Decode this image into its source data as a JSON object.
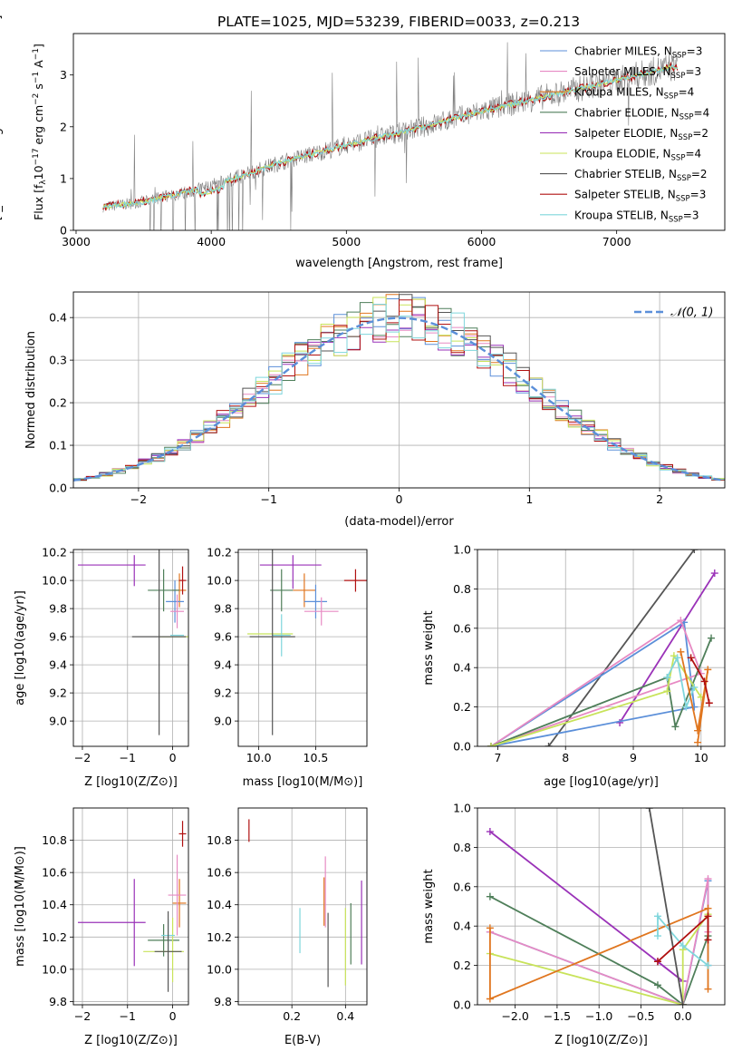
{
  "title": "PLATE=1025, MJD=53239, FIBERID=0033, z=0.213",
  "colors": {
    "chabrier_miles": "#5b8fd9",
    "salpeter_miles": "#e78ac3",
    "kroupa_miles": "#e0761f",
    "chabrier_elodie": "#4f7f5a",
    "salpeter_elodie": "#9a32b8",
    "kroupa_elodie": "#c8e35a",
    "chabrier_stelib": "#555555",
    "salpeter_stelib": "#b01010",
    "kroupa_stelib": "#7fd6dc",
    "spectrum": "#808080",
    "normal": "#5b8fd9"
  },
  "legend1": [
    {
      "label": "Chabrier MILES, N",
      "sub": "SSP",
      "suffix": "=3",
      "color": "#5b8fd9"
    },
    {
      "label": "Salpeter MILES, N",
      "sub": "SSP",
      "suffix": "=3",
      "color": "#e78ac3"
    },
    {
      "label": "Kroupa MILES, N",
      "sub": "SSP",
      "suffix": "=4",
      "color": "#e0761f"
    },
    {
      "label": "Chabrier ELODIE, N",
      "sub": "SSP",
      "suffix": "=4",
      "color": "#4f7f5a"
    },
    {
      "label": "Salpeter ELODIE, N",
      "sub": "SSP",
      "suffix": "=2",
      "color": "#9a32b8"
    },
    {
      "label": "Kroupa ELODIE, N",
      "sub": "SSP",
      "suffix": "=4",
      "color": "#c8e35a"
    },
    {
      "label": "Chabrier STELIB, N",
      "sub": "SSP",
      "suffix": "=2",
      "color": "#555555"
    },
    {
      "label": "Salpeter STELIB, N",
      "sub": "SSP",
      "suffix": "=3",
      "color": "#b01010"
    },
    {
      "label": "Kroupa STELIB, N",
      "sub": "SSP",
      "suffix": "=3",
      "color": "#7fd6dc"
    }
  ],
  "legend2": "𝒩(0, 1)",
  "chart_data": [
    {
      "type": "line",
      "xlabel": "wavelength [Angstrom, rest frame]",
      "ylabel": "Flux [f_λ 10^-17 erg cm^-2 s^-1 A^-1]",
      "xlim": [
        2980,
        7800
      ],
      "ylim": [
        0,
        3.8
      ],
      "xticks": [
        3000,
        4000,
        5000,
        6000,
        7000
      ],
      "yticks": [
        0,
        1,
        2,
        3
      ],
      "continuum": {
        "x": [
          3200,
          3500,
          4000,
          4500,
          5000,
          5500,
          6000,
          6500,
          7000,
          7400
        ],
        "y": [
          0.45,
          0.55,
          0.85,
          1.3,
          1.65,
          1.95,
          2.3,
          2.6,
          2.9,
          3.15
        ]
      }
    },
    {
      "type": "bar",
      "xlabel": "(data-model)/error",
      "ylabel": "Normed distribution",
      "xlim": [
        -2.5,
        2.5
      ],
      "ylim": [
        0,
        0.46
      ],
      "xticks": [
        -2,
        -1,
        0,
        1,
        2
      ],
      "yticks": [
        0.0,
        0.1,
        0.2,
        0.3,
        0.4
      ],
      "grid": true,
      "legend_position": "top-right",
      "bin_width": 0.1,
      "series_values_by_bin": "normal density with jitter",
      "normal_mean": 0,
      "normal_sigma": 1
    },
    {
      "type": "scatter",
      "xlabel": "Z [log10(Z/Z⊙)]",
      "ylabel": "age  [log10(age/yr)]",
      "xlim": [
        -2.2,
        0.35
      ],
      "ylim": [
        8.82,
        10.22
      ],
      "xticks": [
        -2,
        -1,
        0
      ],
      "yticks": [
        9.0,
        9.2,
        9.4,
        9.6,
        9.8,
        10.0,
        10.2
      ],
      "points": [
        {
          "x": -1.35,
          "y": 10.11,
          "xerr": 0.75,
          "yerr": 0.0,
          "color": "#9a32b8"
        },
        {
          "x": -0.85,
          "y": 10.07,
          "xerr": 0.0,
          "yerr": 0.11,
          "color": "#9a32b8"
        },
        {
          "x": 0.15,
          "y": 9.93,
          "xerr": 0.15,
          "yerr": 0.12,
          "color": "#e0761f"
        },
        {
          "x": 0.05,
          "y": 9.85,
          "xerr": 0.2,
          "yerr": 0.15,
          "color": "#5b8fd9"
        },
        {
          "x": 0.1,
          "y": 9.78,
          "xerr": 0.15,
          "yerr": 0.12,
          "color": "#e78ac3"
        },
        {
          "x": -0.2,
          "y": 9.93,
          "xerr": 0.35,
          "yerr": 0.15,
          "color": "#4f7f5a"
        },
        {
          "x": 0.1,
          "y": 9.6,
          "xerr": 0.4,
          "yerr": 0.0,
          "color": "#c8e35a"
        },
        {
          "x": 0.1,
          "y": 9.61,
          "xerr": 0.15,
          "yerr": 0.0,
          "color": "#7fd6dc"
        },
        {
          "x": -0.3,
          "y": 9.6,
          "xerr": 0.6,
          "yerr": 0.7,
          "color": "#555555"
        },
        {
          "x": 0.22,
          "y": 10.0,
          "xerr": 0.08,
          "yerr": 0.1,
          "color": "#b01010"
        }
      ]
    },
    {
      "type": "scatter",
      "xlabel": "mass [log10(M/M⊙)]",
      "ylabel": "",
      "xlim": [
        9.82,
        10.95
      ],
      "ylim": [
        8.82,
        10.22
      ],
      "xticks": [
        10.0,
        10.5
      ],
      "yticks": [
        9.0,
        9.2,
        9.4,
        9.6,
        9.8,
        10.0,
        10.2
      ],
      "points": [
        {
          "x": 10.28,
          "y": 10.11,
          "xerr": 0.27,
          "yerr": 0.0,
          "color": "#9a32b8"
        },
        {
          "x": 10.3,
          "y": 10.06,
          "xerr": 0.0,
          "yerr": 0.12,
          "color": "#9a32b8"
        },
        {
          "x": 10.4,
          "y": 9.93,
          "xerr": 0.1,
          "yerr": 0.12,
          "color": "#e0761f"
        },
        {
          "x": 10.5,
          "y": 9.85,
          "xerr": 0.1,
          "yerr": 0.12,
          "color": "#5b8fd9"
        },
        {
          "x": 10.55,
          "y": 9.78,
          "xerr": 0.15,
          "yerr": 0.1,
          "color": "#e78ac3"
        },
        {
          "x": 10.2,
          "y": 9.93,
          "xerr": 0.1,
          "yerr": 0.15,
          "color": "#4f7f5a"
        },
        {
          "x": 10.1,
          "y": 9.62,
          "xerr": 0.2,
          "yerr": 0.0,
          "color": "#c8e35a"
        },
        {
          "x": 10.2,
          "y": 9.61,
          "xerr": 0.08,
          "yerr": 0.15,
          "color": "#7fd6dc"
        },
        {
          "x": 10.12,
          "y": 9.6,
          "xerr": 0.2,
          "yerr": 0.7,
          "color": "#555555"
        },
        {
          "x": 10.85,
          "y": 10.0,
          "xerr": 0.1,
          "yerr": 0.08,
          "color": "#b01010"
        }
      ]
    },
    {
      "type": "line",
      "xlabel": "age  [log10(age/yr)]",
      "ylabel": "mass weight",
      "xlim": [
        6.7,
        10.35
      ],
      "ylim": [
        0,
        1
      ],
      "xticks": [
        7,
        8,
        9,
        10
      ],
      "yticks": [
        0.0,
        0.2,
        0.4,
        0.6,
        0.8,
        1.0
      ],
      "series": [
        {
          "color": "#555555",
          "x": [
            7.75,
            9.9
          ],
          "y": [
            0.0,
            1.0
          ]
        },
        {
          "color": "#9a32b8",
          "x": [
            8.8,
            10.2
          ],
          "y": [
            0.12,
            0.88
          ]
        },
        {
          "color": "#5b8fd9",
          "x": [
            6.9,
            9.75,
            9.9,
            6.9
          ],
          "y": [
            0.0,
            0.63,
            0.2,
            0.0
          ]
        },
        {
          "color": "#e78ac3",
          "x": [
            6.9,
            9.7,
            10.0,
            6.9
          ],
          "y": [
            0.0,
            0.64,
            0.37,
            0.0
          ]
        },
        {
          "color": "#4f7f5a",
          "x": [
            6.9,
            9.5,
            9.62,
            10.15
          ],
          "y": [
            0.0,
            0.35,
            0.1,
            0.55
          ]
        },
        {
          "color": "#c8e35a",
          "x": [
            6.9,
            9.5,
            9.6,
            10.0
          ],
          "y": [
            0.0,
            0.28,
            0.46,
            0.25
          ]
        },
        {
          "color": "#7fd6dc",
          "x": [
            9.5,
            9.65,
            9.78,
            9.9
          ],
          "y": [
            0.35,
            0.45,
            0.2,
            0.3
          ]
        },
        {
          "color": "#e0761f",
          "x": [
            9.7,
            9.95,
            10.1,
            9.95
          ],
          "y": [
            0.48,
            0.08,
            0.39,
            0.02
          ]
        },
        {
          "color": "#b01010",
          "x": [
            9.85,
            10.05,
            10.12
          ],
          "y": [
            0.45,
            0.33,
            0.22
          ]
        }
      ]
    },
    {
      "type": "scatter",
      "xlabel": "Z [log10(Z/Z⊙)]",
      "ylabel": "mass [log10(M/M⊙)]",
      "xlim": [
        -2.2,
        0.35
      ],
      "ylim": [
        9.78,
        11.0
      ],
      "xticks": [
        -2,
        -1,
        0
      ],
      "yticks": [
        9.8,
        10.0,
        10.2,
        10.4,
        10.6,
        10.8
      ],
      "points": [
        {
          "x": -1.35,
          "y": 10.29,
          "xerr": 0.75,
          "yerr": 0.0,
          "color": "#9a32b8"
        },
        {
          "x": -0.85,
          "y": 10.29,
          "xerr": 0.0,
          "yerr": 0.27,
          "color": "#9a32b8"
        },
        {
          "x": 0.15,
          "y": 10.41,
          "xerr": 0.15,
          "yerr": 0.15,
          "color": "#e0761f"
        },
        {
          "x": 0.1,
          "y": 10.46,
          "xerr": 0.2,
          "yerr": 0.25,
          "color": "#e78ac3"
        },
        {
          "x": -0.2,
          "y": 10.18,
          "xerr": 0.35,
          "yerr": 0.1,
          "color": "#4f7f5a"
        },
        {
          "x": -0.2,
          "y": 10.11,
          "xerr": 0.45,
          "yerr": 0.0,
          "color": "#c8e35a"
        },
        {
          "x": 0.0,
          "y": 10.12,
          "xerr": 0.0,
          "yerr": 0.2,
          "color": "#c8e35a"
        },
        {
          "x": -0.1,
          "y": 10.21,
          "xerr": 0.15,
          "yerr": 0.1,
          "color": "#7fd6dc"
        },
        {
          "x": -0.1,
          "y": 10.11,
          "xerr": 0.3,
          "yerr": 0.25,
          "color": "#555555"
        },
        {
          "x": 0.22,
          "y": 10.84,
          "xerr": 0.08,
          "yerr": 0.08,
          "color": "#b01010"
        }
      ]
    },
    {
      "type": "scatter",
      "xlabel": "E(B-V)",
      "ylabel": "",
      "xlim": [
        0.0,
        0.48
      ],
      "ylim": [
        9.78,
        11.0
      ],
      "xticks": [
        0.2,
        0.4
      ],
      "yticks": [
        9.8,
        10.0,
        10.2,
        10.4,
        10.6,
        10.8
      ],
      "points": [
        {
          "x": 0.04,
          "y": 10.86,
          "xerr": 0.0,
          "yerr": 0.07,
          "color": "#b01010"
        },
        {
          "x": 0.23,
          "y": 10.24,
          "xerr": 0.0,
          "yerr": 0.14,
          "color": "#7fd6dc"
        },
        {
          "x": 0.32,
          "y": 10.42,
          "xerr": 0.0,
          "yerr": 0.15,
          "color": "#e0761f"
        },
        {
          "x": 0.325,
          "y": 10.48,
          "xerr": 0.0,
          "yerr": 0.22,
          "color": "#e78ac3"
        },
        {
          "x": 0.335,
          "y": 10.12,
          "xerr": 0.0,
          "yerr": 0.23,
          "color": "#555555"
        },
        {
          "x": 0.4,
          "y": 10.14,
          "xerr": 0.0,
          "yerr": 0.24,
          "color": "#c8e35a"
        },
        {
          "x": 0.42,
          "y": 10.22,
          "xerr": 0.0,
          "yerr": 0.19,
          "color": "#4f7f5a"
        },
        {
          "x": 0.46,
          "y": 10.29,
          "xerr": 0.0,
          "yerr": 0.26,
          "color": "#9a32b8"
        }
      ]
    },
    {
      "type": "line",
      "xlabel": "Z [log10(Z/Z⊙)]",
      "ylabel": "mass weight",
      "xlim": [
        -2.45,
        0.5
      ],
      "ylim": [
        0,
        1
      ],
      "xticks": [
        -2.0,
        -1.5,
        -1.0,
        -0.5,
        0.0
      ],
      "yticks": [
        0.0,
        0.2,
        0.4,
        0.6,
        0.8,
        1.0
      ],
      "series": [
        {
          "color": "#9a32b8",
          "x": [
            -2.3,
            0.0,
            -0.3
          ],
          "y": [
            0.88,
            0.12,
            0.22
          ]
        },
        {
          "color": "#4f7f5a",
          "x": [
            -2.3,
            -0.3,
            0.0,
            0.3
          ],
          "y": [
            0.55,
            0.1,
            0.0,
            0.35
          ]
        },
        {
          "color": "#5b8fd9",
          "x": [
            -2.3,
            0.0,
            0.3,
            0.3
          ],
          "y": [
            0.37,
            0.0,
            0.63,
            0.2
          ]
        },
        {
          "color": "#e78ac3",
          "x": [
            -2.3,
            0.0,
            0.3,
            0.3
          ],
          "y": [
            0.37,
            0.0,
            0.64,
            0.37
          ]
        },
        {
          "color": "#c8e35a",
          "x": [
            -2.3,
            0.0,
            0.0,
            0.3
          ],
          "y": [
            0.26,
            0.0,
            0.28,
            0.46
          ]
        },
        {
          "color": "#e0761f",
          "x": [
            -2.3,
            -2.3,
            0.3,
            0.3
          ],
          "y": [
            0.39,
            0.03,
            0.49,
            0.08
          ]
        },
        {
          "color": "#7fd6dc",
          "x": [
            -0.3,
            -0.3,
            0.0,
            0.3
          ],
          "y": [
            0.35,
            0.45,
            0.3,
            0.2
          ]
        },
        {
          "color": "#555555",
          "x": [
            -0.4,
            0.0
          ],
          "y": [
            1.0,
            0.0
          ]
        },
        {
          "color": "#b01010",
          "x": [
            -0.3,
            0.3,
            0.3
          ],
          "y": [
            0.22,
            0.45,
            0.33
          ]
        }
      ]
    }
  ]
}
